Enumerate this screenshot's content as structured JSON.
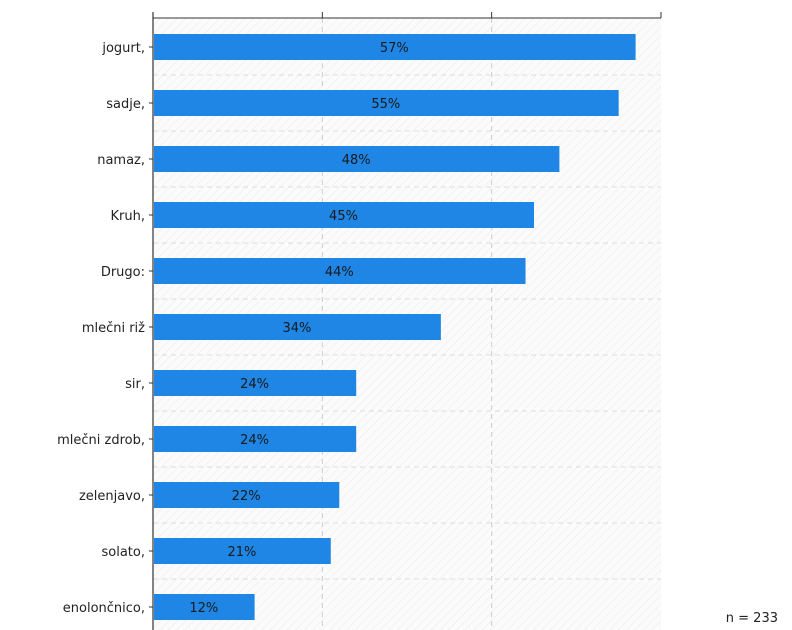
{
  "chart_data": {
    "type": "bar",
    "orientation": "horizontal",
    "categories": [
      "jogurt,",
      "sadje,",
      "namaz,",
      "Kruh,",
      "Drugo:",
      "mlečni riž",
      "sir,",
      "mlečni zdrob,",
      "zelenjavo,",
      "solato,",
      "enolončnico,"
    ],
    "values": [
      57,
      55,
      48,
      45,
      44,
      34,
      24,
      24,
      22,
      21,
      12
    ],
    "value_labels": [
      "57%",
      "55%",
      "48%",
      "45%",
      "44%",
      "34%",
      "24%",
      "24%",
      "22%",
      "21%",
      "12%"
    ],
    "xlim": [
      0,
      60
    ],
    "grid": true,
    "bar_color": "#1f86e6"
  },
  "footer": {
    "n_label": "n = 233"
  }
}
